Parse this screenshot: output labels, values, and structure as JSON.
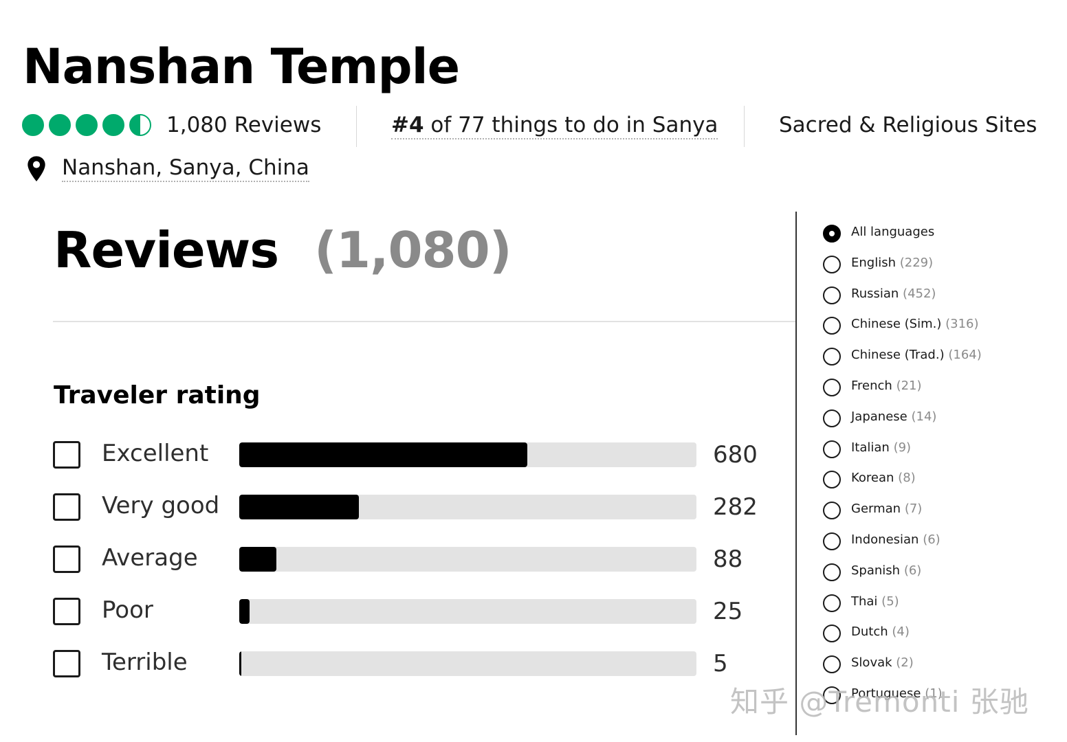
{
  "attraction": {
    "title": "Nanshan Temple",
    "bubble_rating": 4.5,
    "reviews_count": "1,080 Reviews",
    "rank_prefix": "#4",
    "rank_suffix": " of 77 things to do in Sanya",
    "category": "Sacred & Religious Sites",
    "location": "Nanshan, Sanya, China",
    "bubble_color": "#00aa6c"
  },
  "reviews": {
    "heading": "Reviews",
    "count": "(1,080)"
  },
  "traveler_rating": {
    "title": "Traveler rating",
    "rows": [
      {
        "label": "Excellent",
        "count": "680",
        "fraction": 0.63
      },
      {
        "label": "Very good",
        "count": "282",
        "fraction": 0.261
      },
      {
        "label": "Average",
        "count": "88",
        "fraction": 0.081
      },
      {
        "label": "Poor",
        "count": "25",
        "fraction": 0.023
      },
      {
        "label": "Terrible",
        "count": "5",
        "fraction": 0.005
      }
    ]
  },
  "languages": [
    {
      "name": "All languages",
      "count": "",
      "selected": true
    },
    {
      "name": "English",
      "count": "(229)",
      "selected": false
    },
    {
      "name": "Russian",
      "count": "(452)",
      "selected": false
    },
    {
      "name": "Chinese (Sim.)",
      "count": "(316)",
      "selected": false
    },
    {
      "name": "Chinese (Trad.)",
      "count": "(164)",
      "selected": false
    },
    {
      "name": "French",
      "count": "(21)",
      "selected": false
    },
    {
      "name": "Japanese",
      "count": "(14)",
      "selected": false
    },
    {
      "name": "Italian",
      "count": "(9)",
      "selected": false
    },
    {
      "name": "Korean",
      "count": "(8)",
      "selected": false
    },
    {
      "name": "German",
      "count": "(7)",
      "selected": false
    },
    {
      "name": "Indonesian",
      "count": "(6)",
      "selected": false
    },
    {
      "name": "Spanish",
      "count": "(6)",
      "selected": false
    },
    {
      "name": "Thai",
      "count": "(5)",
      "selected": false
    },
    {
      "name": "Dutch",
      "count": "(4)",
      "selected": false
    },
    {
      "name": "Slovak",
      "count": "(2)",
      "selected": false
    },
    {
      "name": "Portuguese",
      "count": "(1)",
      "selected": false
    }
  ],
  "watermark": "知乎 @Tremonti 张驰",
  "icons": {
    "location": "map-pin-icon",
    "rating": "bubble-rating-icon"
  }
}
